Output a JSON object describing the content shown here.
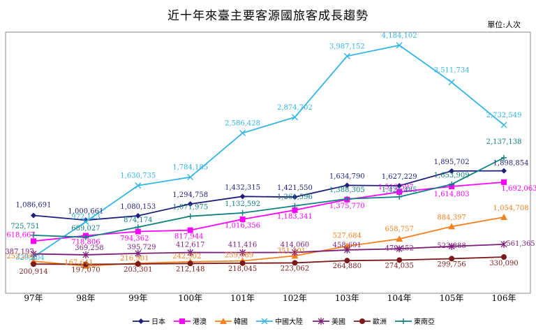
{
  "title": "近十年來臺主要客源國旅客成長趨勢",
  "unit": "單位:人次",
  "chart_data": {
    "type": "line",
    "title": "近十年來臺主要客源國旅客成長趨勢",
    "unit_label": "單位:人次",
    "categories": [
      "97年",
      "98年",
      "99年",
      "100年",
      "101年",
      "102年",
      "103年",
      "104年",
      "105年",
      "106年"
    ],
    "ylim": [
      0,
      4500000
    ],
    "grid": false,
    "legend_position": "bottom",
    "series": [
      {
        "name": "日本",
        "color": "#1F1F7A",
        "marker": "diamond",
        "values": [
          1086691,
          1000661,
          1080153,
          1294758,
          1432315,
          1421550,
          1634790,
          1627229,
          1895702,
          1898854
        ],
        "labels": [
          "1,086,691",
          "1,000,661",
          "1,080,153",
          "1,294,758",
          "1,432,315",
          "1,421,550",
          "1,634,790",
          "1,627,229",
          "1,895,702",
          "1,898,854"
        ]
      },
      {
        "name": "港澳",
        "color": "#FF00FF",
        "marker": "square",
        "values": [
          618667,
          718806,
          794362,
          817944,
          1016356,
          1183341,
          1375770,
          1513597,
          1614803,
          1692063
        ],
        "labels": [
          "618,667",
          "718,806",
          "794,362",
          "817,944",
          "1,016,356",
          "1,183,341",
          "1,375,770",
          "1,513,597",
          "1,614,803",
          "1,692,063"
        ]
      },
      {
        "name": "韓國",
        "color": "#F58220",
        "marker": "triangle",
        "values": [
          252266,
          167641,
          216901,
          242902,
          259089,
          351301,
          527684,
          658757,
          884397,
          1054708
        ],
        "labels": [
          "252,266",
          "167,641",
          "216,901",
          "242,902",
          "259,089",
          "351,301",
          "527,684",
          "658,757",
          "884,397",
          "1,054,708"
        ]
      },
      {
        "name": "中國大陸",
        "color": "#33B5E5",
        "marker": "x",
        "values": [
          329204,
          972123,
          1630735,
          1784185,
          2586428,
          2874702,
          3987152,
          4184102,
          3511734,
          2732549
        ],
        "labels": [
          "329,204",
          "972,123",
          "1,630,735",
          "1,784,185",
          "2,586,428",
          "2,874,702",
          "3,987,152",
          "4,184,102",
          "3,511,734",
          "2,732,549"
        ]
      },
      {
        "name": "美國",
        "color": "#7B1E7A",
        "marker": "star",
        "values": [
          387197,
          369258,
          395729,
          412617,
          411416,
          414060,
          458691,
          479452,
          523888,
          561365
        ],
        "labels": [
          "387,197",
          "369,258",
          "395,729",
          "412,617",
          "411,416",
          "414,060",
          "458,691",
          "479,452",
          "523,888",
          "561,365"
        ]
      },
      {
        "name": "歐洲",
        "color": "#7B1A1A",
        "marker": "circle",
        "values": [
          200914,
          197070,
          203301,
          212148,
          218045,
          223062,
          264880,
          274035,
          299756,
          330090
        ],
        "labels": [
          "200,914",
          "197,070",
          "203,301",
          "212,148",
          "218,045",
          "223,062",
          "264,880",
          "274,035",
          "299,756",
          "330,090"
        ]
      },
      {
        "name": "東南亞",
        "color": "#0E7F7F",
        "marker": "plus",
        "values": [
          725751,
          689027,
          874174,
          1071975,
          1132592,
          1261596,
          1388305,
          1425485,
          1653909,
          2137138
        ],
        "labels": [
          "725,751",
          "689,027",
          "874,174",
          "1,071,975",
          "1,132,592",
          "1,261,596",
          "1,388,305",
          "1,425,485",
          "1,653,909",
          "2,137,138"
        ]
      }
    ]
  }
}
